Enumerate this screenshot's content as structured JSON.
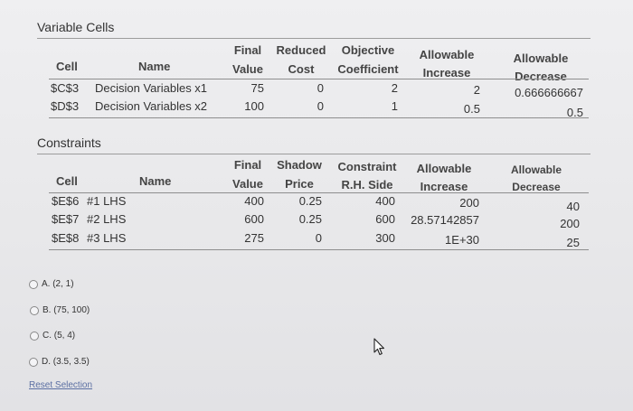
{
  "variable_cells": {
    "title": "Variable Cells",
    "headers": {
      "cell": "Cell",
      "name": "Name",
      "final_value": [
        "Final",
        "Value"
      ],
      "reduced_cost": [
        "Reduced",
        "Cost"
      ],
      "objective_coefficient": [
        "Objective",
        "Coefficient"
      ],
      "allowable_increase": [
        "Allowable",
        "Increase"
      ],
      "allowable_decrease": [
        "Allowable",
        "Decrease"
      ]
    },
    "rows": [
      {
        "cell": "$C$3",
        "name": "Decision Variables x1",
        "final_value": "75",
        "reduced_cost": "0",
        "objective_coefficient": "2",
        "allowable_increase": "2",
        "allowable_decrease": "0.666666667"
      },
      {
        "cell": "$D$3",
        "name": "Decision Variables x2",
        "final_value": "100",
        "reduced_cost": "0",
        "objective_coefficient": "1",
        "allowable_increase": "0.5",
        "allowable_decrease": "0.5"
      }
    ]
  },
  "constraints": {
    "title": "Constraints",
    "headers": {
      "cell": "Cell",
      "name": "Name",
      "final_value": [
        "Final",
        "Value"
      ],
      "shadow_price": [
        "Shadow",
        "Price"
      ],
      "constraint_rhs": [
        "Constraint",
        "R.H. Side"
      ],
      "allowable_increase": [
        "Allowable",
        "Increase"
      ],
      "allowable_decrease": [
        "Allowable",
        "Decrease"
      ]
    },
    "rows": [
      {
        "cell": "$E$6",
        "name": "#1 LHS",
        "final_value": "400",
        "shadow_price": "0.25",
        "constraint_rhs": "400",
        "allowable_increase": "200",
        "allowable_decrease": "40"
      },
      {
        "cell": "$E$7",
        "name": "#2 LHS",
        "final_value": "600",
        "shadow_price": "0.25",
        "constraint_rhs": "600",
        "allowable_increase": "28.57142857",
        "allowable_decrease": "200"
      },
      {
        "cell": "$E$8",
        "name": "#3 LHS",
        "final_value": "275",
        "shadow_price": "0",
        "constraint_rhs": "300",
        "allowable_increase": "1E+30",
        "allowable_decrease": "25"
      }
    ]
  },
  "options": [
    {
      "label": "A. (2, 1)"
    },
    {
      "label": "B. (75, 100)"
    },
    {
      "label": "C. (5, 4)"
    },
    {
      "label": "D. (3.5, 3.5)"
    }
  ],
  "reset_label": "Reset Selection",
  "icons": {
    "cursor": "mouse-pointer-icon"
  }
}
